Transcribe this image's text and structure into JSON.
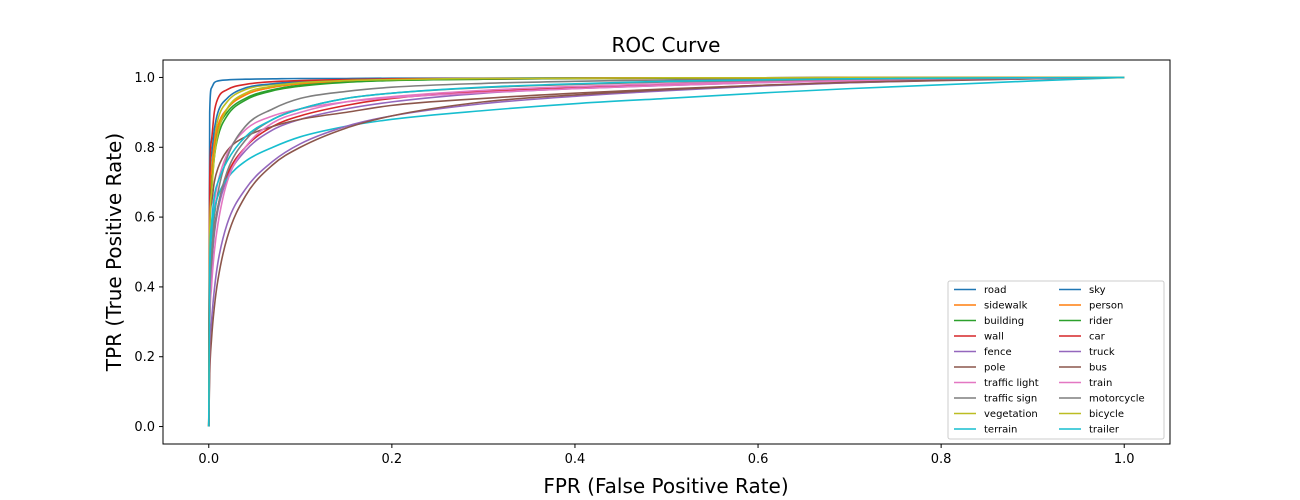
{
  "chart_data": {
    "type": "line",
    "title": "ROC Curve",
    "xlabel": "FPR (False Positive Rate)",
    "ylabel": "TPR (True Positive Rate)",
    "xlim": [
      -0.05,
      1.05
    ],
    "ylim": [
      -0.05,
      1.05
    ],
    "xticks": [
      {
        "value": 0.0,
        "label": "0.0"
      },
      {
        "value": 0.2,
        "label": "0.2"
      },
      {
        "value": 0.4,
        "label": "0.4"
      },
      {
        "value": 0.6,
        "label": "0.6"
      },
      {
        "value": 0.8,
        "label": "0.8"
      },
      {
        "value": 1.0,
        "label": "1.0"
      }
    ],
    "yticks": [
      {
        "value": 0.0,
        "label": "0.0"
      },
      {
        "value": 0.2,
        "label": "0.2"
      },
      {
        "value": 0.4,
        "label": "0.4"
      },
      {
        "value": 0.6,
        "label": "0.6"
      },
      {
        "value": 0.8,
        "label": "0.8"
      },
      {
        "value": 1.0,
        "label": "1.0"
      }
    ],
    "grid": false,
    "legend": {
      "position": "lower-right",
      "columns": 2
    },
    "x": [
      0,
      0.001,
      0.003,
      0.006,
      0.01,
      0.02,
      0.04,
      0.07,
      0.1,
      0.15,
      0.2,
      0.3,
      0.4,
      0.5,
      0.6,
      0.7,
      0.8,
      0.9,
      1.0
    ],
    "series": [
      {
        "name": "road",
        "color": "#1f77b4",
        "values": [
          0,
          0.9,
          0.97,
          0.985,
          0.99,
          0.993,
          0.995,
          0.996,
          0.997,
          0.997,
          0.998,
          0.998,
          0.999,
          0.999,
          0.999,
          1,
          1,
          1,
          1
        ]
      },
      {
        "name": "sidewalk",
        "color": "#ff7f0e",
        "values": [
          0,
          0.6,
          0.72,
          0.8,
          0.86,
          0.91,
          0.95,
          0.972,
          0.982,
          0.99,
          0.993,
          0.996,
          0.997,
          0.998,
          0.999,
          0.999,
          1,
          1,
          1
        ]
      },
      {
        "name": "building",
        "color": "#2ca02c",
        "values": [
          0,
          0.6,
          0.72,
          0.8,
          0.85,
          0.9,
          0.94,
          0.965,
          0.978,
          0.987,
          0.992,
          0.995,
          0.997,
          0.998,
          0.999,
          0.999,
          1,
          1,
          1
        ]
      },
      {
        "name": "wall",
        "color": "#d62728",
        "values": [
          0,
          0.3,
          0.45,
          0.56,
          0.63,
          0.72,
          0.8,
          0.86,
          0.89,
          0.92,
          0.94,
          0.96,
          0.972,
          0.98,
          0.986,
          0.991,
          0.995,
          0.998,
          1
        ]
      },
      {
        "name": "fence",
        "color": "#9467bd",
        "values": [
          0,
          0.32,
          0.45,
          0.55,
          0.62,
          0.71,
          0.79,
          0.85,
          0.88,
          0.91,
          0.93,
          0.955,
          0.968,
          0.977,
          0.985,
          0.99,
          0.994,
          0.997,
          1
        ]
      },
      {
        "name": "pole",
        "color": "#8c564b",
        "values": [
          0,
          0.55,
          0.64,
          0.7,
          0.74,
          0.79,
          0.83,
          0.86,
          0.88,
          0.9,
          0.92,
          0.94,
          0.955,
          0.967,
          0.977,
          0.985,
          0.991,
          0.996,
          1
        ]
      },
      {
        "name": "traffic light",
        "color": "#e377c2",
        "values": [
          0,
          0.45,
          0.55,
          0.64,
          0.7,
          0.78,
          0.85,
          0.89,
          0.91,
          0.93,
          0.942,
          0.957,
          0.968,
          0.977,
          0.985,
          0.99,
          0.994,
          0.997,
          1
        ]
      },
      {
        "name": "traffic sign",
        "color": "#7f7f7f",
        "values": [
          0,
          0.4,
          0.5,
          0.6,
          0.67,
          0.77,
          0.86,
          0.91,
          0.94,
          0.96,
          0.972,
          0.983,
          0.989,
          0.993,
          0.996,
          0.998,
          0.999,
          1,
          1
        ]
      },
      {
        "name": "vegetation",
        "color": "#bcbd22",
        "values": [
          0,
          0.62,
          0.74,
          0.82,
          0.88,
          0.93,
          0.965,
          0.98,
          0.987,
          0.993,
          0.995,
          0.997,
          0.998,
          0.999,
          0.999,
          1,
          1,
          1,
          1
        ]
      },
      {
        "name": "terrain",
        "color": "#17becf",
        "values": [
          0,
          0.4,
          0.55,
          0.62,
          0.66,
          0.71,
          0.76,
          0.8,
          0.83,
          0.86,
          0.88,
          0.905,
          0.925,
          0.94,
          0.955,
          0.968,
          0.979,
          0.99,
          1
        ]
      },
      {
        "name": "sky",
        "color": "#1f77b4",
        "values": [
          0,
          0.68,
          0.78,
          0.85,
          0.9,
          0.94,
          0.97,
          0.982,
          0.988,
          0.993,
          0.995,
          0.997,
          0.998,
          0.999,
          0.999,
          1,
          1,
          1,
          1
        ]
      },
      {
        "name": "person",
        "color": "#ff7f0e",
        "values": [
          0,
          0.62,
          0.73,
          0.81,
          0.86,
          0.91,
          0.95,
          0.972,
          0.982,
          0.99,
          0.993,
          0.996,
          0.997,
          0.998,
          0.999,
          0.999,
          1,
          1,
          1
        ]
      },
      {
        "name": "rider",
        "color": "#2ca02c",
        "values": [
          0,
          0.55,
          0.68,
          0.77,
          0.83,
          0.89,
          0.935,
          0.962,
          0.975,
          0.986,
          0.991,
          0.995,
          0.997,
          0.998,
          0.999,
          0.999,
          1,
          1,
          1
        ]
      },
      {
        "name": "car",
        "color": "#d62728",
        "values": [
          0,
          0.7,
          0.82,
          0.9,
          0.94,
          0.965,
          0.98,
          0.988,
          0.991,
          0.994,
          0.996,
          0.997,
          0.998,
          0.999,
          0.999,
          1,
          1,
          1,
          1
        ]
      },
      {
        "name": "truck",
        "color": "#9467bd",
        "values": [
          0,
          0.2,
          0.3,
          0.39,
          0.47,
          0.58,
          0.68,
          0.76,
          0.81,
          0.86,
          0.89,
          0.925,
          0.946,
          0.962,
          0.975,
          0.985,
          0.992,
          0.997,
          1
        ]
      },
      {
        "name": "bus",
        "color": "#8c564b",
        "values": [
          0,
          0.15,
          0.25,
          0.34,
          0.42,
          0.54,
          0.66,
          0.75,
          0.8,
          0.855,
          0.89,
          0.93,
          0.95,
          0.965,
          0.977,
          0.986,
          0.992,
          0.997,
          1
        ]
      },
      {
        "name": "train",
        "color": "#e377c2",
        "values": [
          0,
          0.28,
          0.4,
          0.5,
          0.58,
          0.7,
          0.8,
          0.87,
          0.9,
          0.93,
          0.945,
          0.963,
          0.974,
          0.982,
          0.988,
          0.993,
          0.996,
          0.998,
          1
        ]
      },
      {
        "name": "motorcycle",
        "color": "#7f7f7f",
        "values": [
          0,
          0.35,
          0.47,
          0.56,
          0.63,
          0.73,
          0.82,
          0.88,
          0.91,
          0.94,
          0.955,
          0.971,
          0.98,
          0.987,
          0.991,
          0.995,
          0.997,
          0.999,
          1
        ]
      },
      {
        "name": "bicycle",
        "color": "#bcbd22",
        "values": [
          0,
          0.55,
          0.67,
          0.77,
          0.84,
          0.91,
          0.955,
          0.975,
          0.985,
          0.991,
          0.994,
          0.997,
          0.998,
          0.999,
          0.999,
          1,
          1,
          1,
          1
        ]
      },
      {
        "name": "trailer",
        "color": "#17becf",
        "values": [
          0,
          0.45,
          0.58,
          0.66,
          0.7,
          0.76,
          0.83,
          0.88,
          0.91,
          0.94,
          0.955,
          0.972,
          0.982,
          0.989,
          0.993,
          0.996,
          0.998,
          0.999,
          1
        ]
      }
    ]
  }
}
